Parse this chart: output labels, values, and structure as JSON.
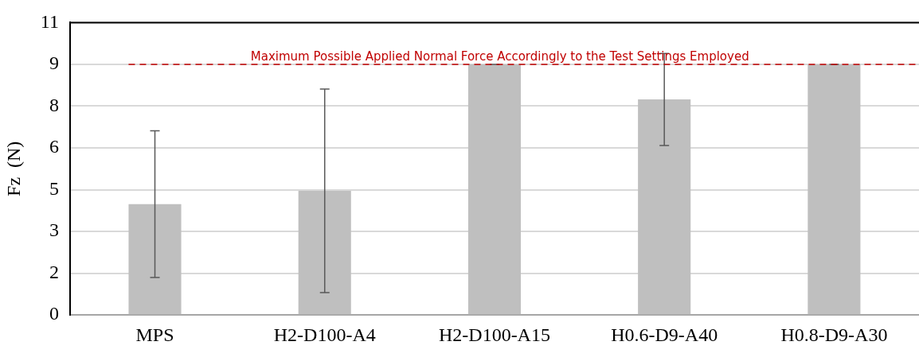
{
  "chart_data": {
    "type": "bar",
    "ylabel": "Fz  (N)",
    "categories": [
      "MPS",
      "H2-D100-A4",
      "H2-D100-A15",
      "H0.6-D9-A40",
      "H0.8-D9-A30"
    ],
    "values": [
      4.17,
      4.67,
      9.43,
      8.11,
      9.43
    ],
    "errors": [
      2.76,
      3.83,
      0,
      1.73,
      0
    ],
    "color": "#bfbfbf",
    "ylim": [
      0,
      11
    ],
    "yticks": [
      0,
      {
        "value": 1.571,
        "label": "2"
      },
      {
        "value": 3.143,
        "label": "3"
      },
      {
        "value": 4.714,
        "label": "5"
      },
      {
        "value": 6.286,
        "label": "6"
      },
      {
        "value": 7.857,
        "label": "8"
      },
      {
        "value": 9.429,
        "label": "9"
      },
      11
    ],
    "grid": "y",
    "ref_lines": [
      {
        "axis": "y",
        "value": 9.43,
        "label": "Maximum Possible Applied Normal Force Accordingly to the Test Settings Employed",
        "color": "#c00000",
        "line_style": "dashed"
      }
    ]
  }
}
